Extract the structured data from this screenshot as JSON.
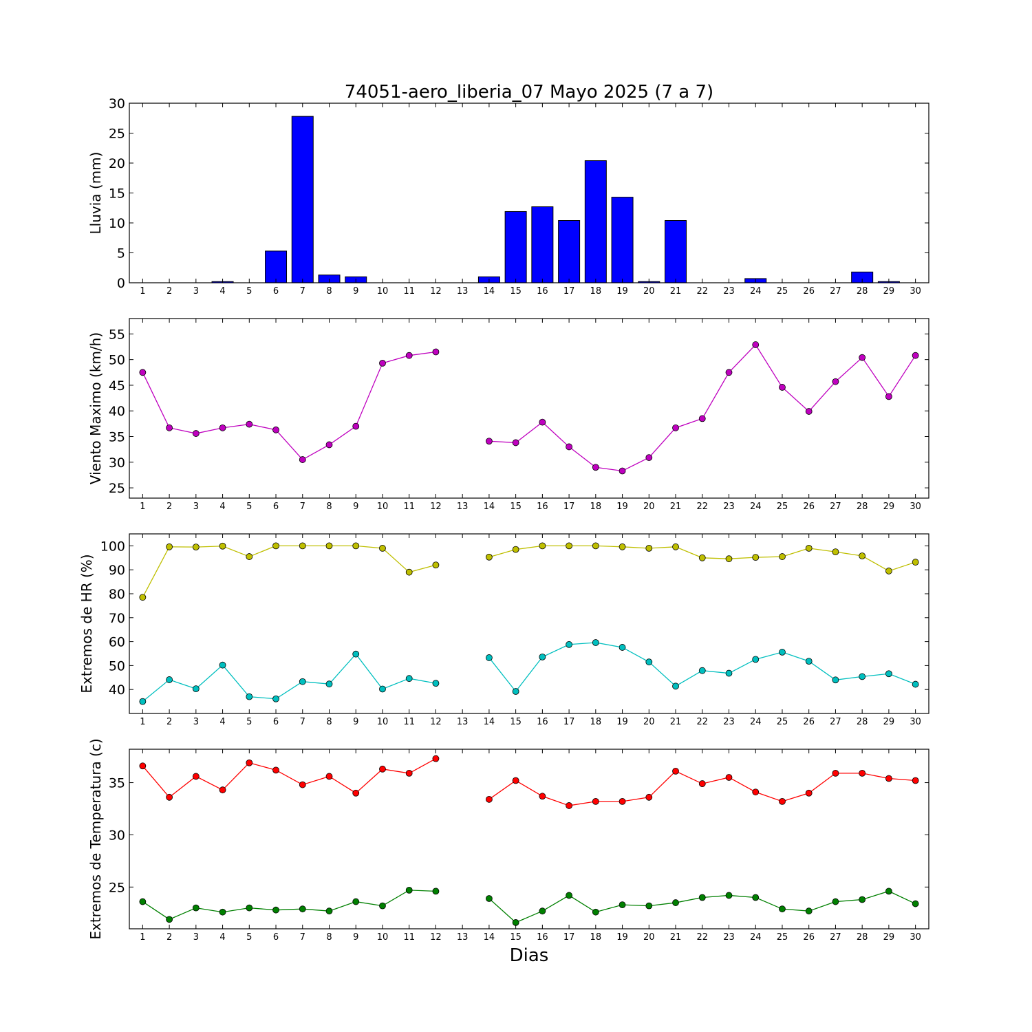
{
  "title": "74051-aero_liberia_07 Mayo 2025  (7 a 7)",
  "xlabel": "Dias",
  "days": [
    1,
    2,
    3,
    4,
    5,
    6,
    7,
    8,
    9,
    10,
    11,
    12,
    13,
    14,
    15,
    16,
    17,
    18,
    19,
    20,
    21,
    22,
    23,
    24,
    25,
    26,
    27,
    28,
    29,
    30
  ],
  "chart_data": [
    {
      "type": "bar",
      "ylabel": "Lluvia (mm)",
      "ylim": [
        0,
        30
      ],
      "yticks": [
        0,
        5,
        10,
        15,
        20,
        25,
        30
      ],
      "grid": false,
      "series": [
        {
          "color": "#0000ff",
          "values": [
            0,
            0,
            0,
            0.2,
            0,
            5.3,
            27.8,
            1.3,
            1.0,
            0,
            0,
            0,
            0,
            1.0,
            11.9,
            12.7,
            10.4,
            20.4,
            14.3,
            0.2,
            10.4,
            0,
            0,
            0.7,
            0,
            0,
            0,
            1.8,
            0.2,
            0
          ]
        }
      ]
    },
    {
      "type": "line",
      "ylabel": "Viento Maximo (km/h)",
      "ylim": [
        23,
        58
      ],
      "yticks": [
        25,
        30,
        35,
        40,
        45,
        50,
        55
      ],
      "grid": false,
      "series": [
        {
          "color": "#bf00bf",
          "values": [
            47.5,
            36.7,
            35.6,
            36.7,
            37.4,
            36.3,
            30.5,
            33.4,
            37.0,
            49.3,
            50.8,
            51.5,
            null,
            34.1,
            33.8,
            37.8,
            33.0,
            29.0,
            28.3,
            30.9,
            36.7,
            38.5,
            47.5,
            52.9,
            44.6,
            39.9,
            45.7,
            50.4,
            42.8,
            50.8
          ]
        }
      ]
    },
    {
      "type": "line",
      "ylabel": "Extremos de HR (%)",
      "ylim": [
        30,
        105
      ],
      "yticks": [
        40,
        50,
        60,
        70,
        80,
        90,
        100
      ],
      "grid": false,
      "series": [
        {
          "color": "#bfbf00",
          "values": [
            78.5,
            99.6,
            99.5,
            99.9,
            95.5,
            100,
            100,
            100,
            100,
            99.0,
            89.0,
            92.0,
            null,
            95.3,
            98.5,
            100,
            100,
            100,
            99.6,
            99.0,
            99.6,
            95.0,
            94.6,
            95.2,
            95.5,
            99.0,
            97.5,
            95.8,
            89.5,
            93.2
          ]
        },
        {
          "color": "#00bfbf",
          "values": [
            35.0,
            44.1,
            40.3,
            50.2,
            37.0,
            36.1,
            43.3,
            42.3,
            54.8,
            40.2,
            44.6,
            42.6,
            null,
            53.3,
            39.2,
            53.6,
            58.8,
            59.6,
            57.6,
            51.5,
            41.4,
            47.9,
            46.8,
            52.6,
            55.6,
            51.8,
            44.0,
            45.4,
            46.6,
            42.2
          ]
        }
      ]
    },
    {
      "type": "line",
      "ylabel": "Extremos de Temperatura (c)",
      "ylim": [
        21,
        38.2
      ],
      "yticks": [
        25,
        30,
        35
      ],
      "grid": false,
      "series": [
        {
          "color": "#ff0000",
          "values": [
            36.6,
            33.6,
            35.6,
            34.3,
            36.9,
            36.2,
            34.8,
            35.6,
            34.0,
            36.3,
            35.9,
            37.3,
            null,
            33.4,
            35.2,
            33.7,
            32.8,
            33.2,
            33.2,
            33.6,
            36.1,
            34.9,
            35.5,
            34.1,
            33.2,
            34.0,
            35.9,
            35.9,
            35.4,
            35.2
          ]
        },
        {
          "color": "#008000",
          "values": [
            23.6,
            21.9,
            23.0,
            22.6,
            23.0,
            22.8,
            22.9,
            22.7,
            23.6,
            23.2,
            24.7,
            24.6,
            null,
            23.9,
            21.6,
            22.7,
            24.2,
            22.6,
            23.3,
            23.2,
            23.5,
            24.0,
            24.2,
            24.0,
            22.9,
            22.7,
            23.6,
            23.8,
            24.6,
            23.4
          ]
        }
      ]
    }
  ]
}
